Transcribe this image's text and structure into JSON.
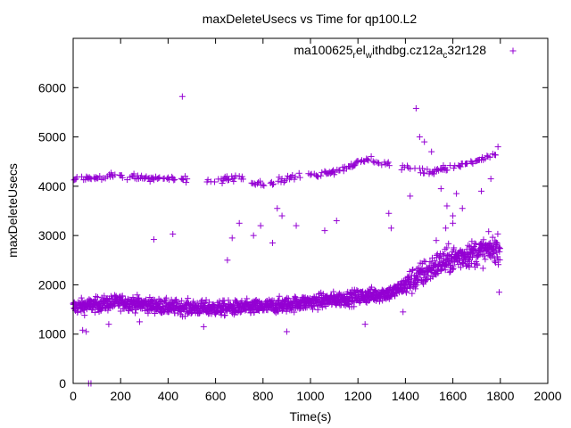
{
  "chart_data": {
    "type": "scatter",
    "title": "maxDeleteUsecs vs Time for qp100.L2",
    "xlabel": "Time(s)",
    "ylabel": "maxDeleteUsecs",
    "xlim": [
      0,
      2000
    ],
    "ylim": [
      0,
      7000
    ],
    "xticks": [
      "0",
      "200",
      "400",
      "600",
      "800",
      "1000",
      "1200",
      "1400",
      "1600",
      "1800",
      "2000"
    ],
    "yticks": [
      "0",
      "1000",
      "2000",
      "3000",
      "4000",
      "5000",
      "6000"
    ],
    "grid": false,
    "legend_position": "top-right",
    "marker": "+",
    "color": "#9400d3",
    "series": [
      {
        "name": "ma100625_rel_withdbg.cz12a_c32r128",
        "name_parts": {
          "p1": "ma100625",
          "sub1": "r",
          "p2": "el",
          "sub2": "w",
          "p3": "ithdbg.cz12a",
          "sub3": "c",
          "p4": "32r128"
        },
        "generator": {
          "base_bands": [
            [
              0,
              1550
            ],
            [
              200,
              1650
            ],
            [
              400,
              1550
            ],
            [
              600,
              1520
            ],
            [
              800,
              1550
            ],
            [
              1000,
              1650
            ],
            [
              1200,
              1750
            ],
            [
              1350,
              1850
            ],
            [
              1450,
              2150
            ],
            [
              1550,
              2450
            ],
            [
              1650,
              2600
            ],
            [
              1800,
              2750
            ]
          ],
          "upper_bands": [
            [
              0,
              4150
            ],
            [
              200,
              4200
            ],
            [
              400,
              4150
            ],
            [
              600,
              4100
            ],
            [
              700,
              4200
            ],
            [
              800,
              4050
            ],
            [
              950,
              4200
            ],
            [
              1100,
              4300
            ],
            [
              1250,
              4550
            ],
            [
              1320,
              4450
            ],
            [
              1500,
              4300
            ],
            [
              1700,
              4500
            ],
            [
              1800,
              4700
            ]
          ],
          "outliers": [
            [
              460,
              5820
            ],
            [
              1445,
              5580
            ],
            [
              1460,
              5000
            ],
            [
              1480,
              4900
            ],
            [
              1510,
              4700
            ],
            [
              1520,
              4250
            ],
            [
              1535,
              4350
            ],
            [
              1550,
              3950
            ],
            [
              1575,
              3600
            ],
            [
              1600,
              3400
            ],
            [
              1615,
              3850
            ],
            [
              1640,
              3550
            ],
            [
              1720,
              3900
            ],
            [
              1760,
              4150
            ],
            [
              1790,
              4800
            ],
            [
              1795,
              1850
            ],
            [
              65,
              0
            ],
            [
              75,
              0
            ],
            [
              40,
              1080
            ],
            [
              55,
              1050
            ],
            [
              340,
              2920
            ],
            [
              420,
              3030
            ],
            [
              650,
              2500
            ],
            [
              670,
              2950
            ],
            [
              700,
              3250
            ],
            [
              760,
              3000
            ],
            [
              790,
              3200
            ],
            [
              840,
              2850
            ],
            [
              860,
              3550
            ],
            [
              880,
              3400
            ],
            [
              940,
              3200
            ],
            [
              1060,
              3100
            ],
            [
              1110,
              3300
            ],
            [
              1330,
              3450
            ],
            [
              1340,
              3150
            ],
            [
              1420,
              3800
            ],
            [
              1530,
              2900
            ],
            [
              1570,
              3150
            ],
            [
              1600,
              3250
            ],
            [
              150,
              1200
            ],
            [
              280,
              1250
            ],
            [
              550,
              1150
            ],
            [
              900,
              1050
            ],
            [
              1230,
              1200
            ],
            [
              1390,
              1450
            ]
          ]
        }
      }
    ]
  }
}
